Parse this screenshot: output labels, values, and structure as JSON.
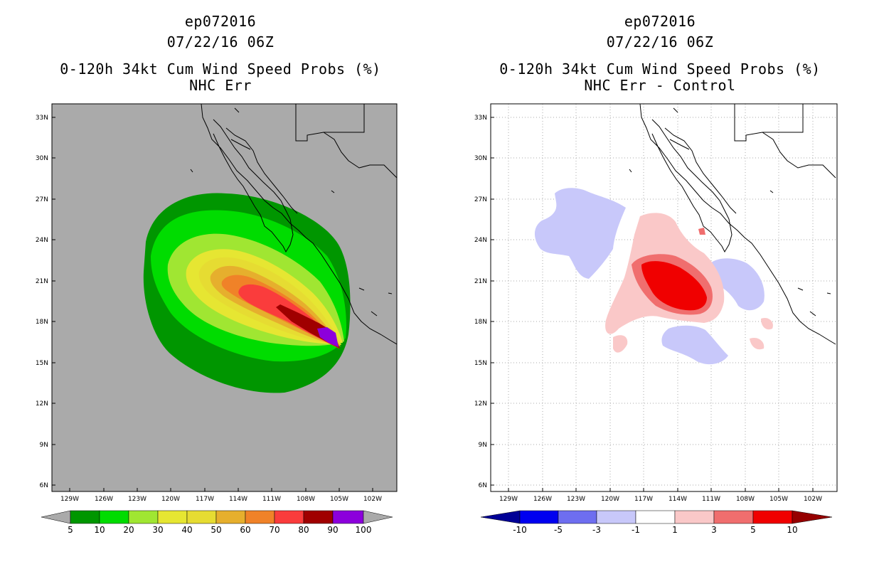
{
  "left_panel": {
    "title_lines": [
      "ep072016",
      "07/22/16 06Z",
      "0-120h 34kt Cum Wind Speed Probs (%)",
      "NHC Err"
    ],
    "colorbar_labels": [
      "5",
      "10",
      "20",
      "30",
      "40",
      "50",
      "60",
      "70",
      "80",
      "90",
      "100"
    ],
    "colorbar_colors": [
      "#aaaaaa",
      "#009600",
      "#00dc00",
      "#a0e632",
      "#e6e632",
      "#e6dc32",
      "#e6af2d",
      "#f08228",
      "#fa3c3c",
      "#a00000",
      "#8c00dc",
      "#aaaaaa"
    ]
  },
  "right_panel": {
    "title_lines": [
      "ep072016",
      "07/22/16 06Z",
      "0-120h 34kt Cum Wind Speed Probs (%)",
      "NHC Err - Control"
    ],
    "colorbar_labels": [
      "-10",
      "-5",
      "-3",
      "-1",
      "1",
      "3",
      "5",
      "10"
    ],
    "colorbar_colors": [
      "#000096",
      "#0000f0",
      "#6e6ef0",
      "#c8c8fa",
      "#ffffff",
      "#fac8c8",
      "#f06e6e",
      "#f00000",
      "#960000"
    ]
  },
  "axes": {
    "lat_labels": [
      "33N",
      "30N",
      "27N",
      "24N",
      "21N",
      "18N",
      "15N",
      "12N",
      "9N",
      "6N"
    ],
    "lon_labels": [
      "129W",
      "126W",
      "123W",
      "120W",
      "117W",
      "114W",
      "111W",
      "108W",
      "105W",
      "102W"
    ]
  },
  "colors": {
    "land_gray": "#aaaaaa",
    "coast": "#000000",
    "grid": "#aaaaaa"
  }
}
